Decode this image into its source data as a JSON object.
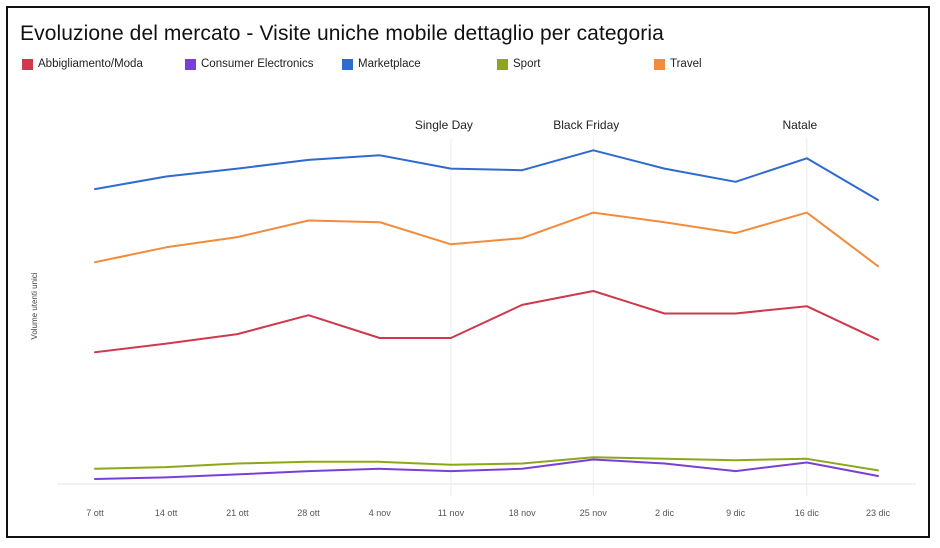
{
  "colors": {
    "Abbigliamento/Moda": "#d0384e",
    "Consumer Electronics": "#7b3fd6",
    "Marketplace": "#2f6ad0",
    "Sport": "#8ca81a",
    "Travel": "#f28b3c"
  },
  "chart_data": {
    "type": "line",
    "title": "Evoluzione del mercato - Visite uniche mobile dettaglio per categoria",
    "ylabel": "Volume utenti unici",
    "xlabel": "",
    "categories": [
      "7 ott",
      "14 ott",
      "21 ott",
      "28 ott",
      "4 nov",
      "11 nov",
      "18 nov",
      "25 nov",
      "2 dic",
      "9 dic",
      "16 dic",
      "23 dic"
    ],
    "ylim": [
      0,
      100
    ],
    "grid": false,
    "legend_position": "top",
    "annotations": [
      {
        "label": "Single Day",
        "category": "11 nov",
        "line": true
      },
      {
        "label": "Black Friday",
        "category": "25 nov",
        "line": true
      },
      {
        "label": "Natale",
        "category": "16 dic",
        "line": true
      }
    ],
    "series": [
      {
        "name": "Abbigliamento/Moda",
        "values": [
          39.5,
          42.1,
          45.0,
          50.7,
          43.8,
          43.8,
          53.8,
          58.0,
          51.2,
          51.2,
          53.4,
          43.3
        ]
      },
      {
        "name": "Consumer Electronics",
        "values": [
          1.2,
          1.7,
          2.6,
          3.6,
          4.3,
          3.6,
          4.3,
          7.1,
          5.9,
          3.6,
          6.2,
          2.1
        ]
      },
      {
        "name": "Marketplace",
        "values": [
          88.8,
          92.6,
          95.0,
          97.6,
          99.0,
          95.0,
          94.5,
          100.5,
          95.0,
          91.0,
          98.1,
          85.5
        ]
      },
      {
        "name": "Sport",
        "values": [
          4.3,
          4.8,
          5.9,
          6.4,
          6.4,
          5.5,
          5.9,
          7.8,
          7.3,
          6.9,
          7.3,
          3.8
        ]
      },
      {
        "name": "Travel",
        "values": [
          66.7,
          71.2,
          74.3,
          79.3,
          78.8,
          72.1,
          74.0,
          81.7,
          78.8,
          75.5,
          81.7,
          65.5
        ]
      }
    ]
  }
}
